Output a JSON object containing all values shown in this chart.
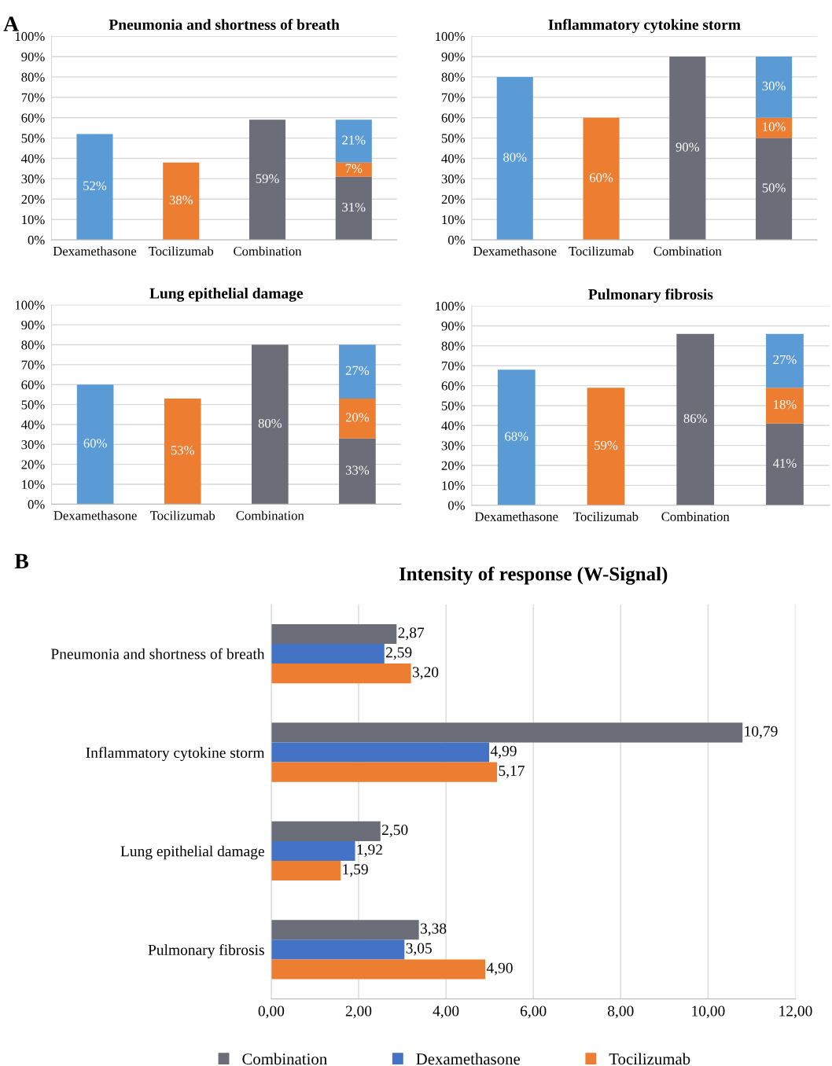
{
  "chart_data": [
    {
      "type": "bar",
      "title": "Pneumonia and shortness of breath",
      "annotations": [
        "A"
      ],
      "categories": [
        "Dexamethasone",
        "Tocilizumab",
        "Combination",
        null
      ],
      "stacked": true,
      "grid": "y",
      "legend": false,
      "ylim": [
        0,
        100
      ],
      "yticks": [
        {
          "value": 0,
          "label": "0%"
        },
        {
          "value": 10,
          "label": "10%"
        },
        {
          "value": 20,
          "label": "20%"
        },
        {
          "value": 30,
          "label": "30%"
        },
        {
          "value": 40,
          "label": "40%"
        },
        {
          "value": 50,
          "label": "50%"
        },
        {
          "value": 60,
          "label": "60%"
        },
        {
          "value": 70,
          "label": "70%"
        },
        {
          "value": 80,
          "label": "80%"
        },
        {
          "value": 90,
          "label": "90%"
        },
        {
          "value": 100,
          "label": "100%"
        }
      ],
      "series": [
        {
          "color": "#6b6e78",
          "values": [
            null,
            null,
            59,
            31
          ],
          "value_labels": [
            null,
            null,
            "59%",
            "31%"
          ]
        },
        {
          "color": "#ed7d31",
          "values": [
            null,
            38,
            null,
            7
          ],
          "value_labels": [
            null,
            "38%",
            null,
            "7%"
          ]
        },
        {
          "color": "#5b9bd5",
          "values": [
            52,
            null,
            null,
            21
          ],
          "value_labels": [
            "52%",
            null,
            null,
            "21%"
          ]
        }
      ]
    },
    {
      "type": "bar",
      "title": "Inflammatory cytokine storm",
      "categories": [
        "Dexamethasone",
        "Tocilizumab",
        "Combination",
        null
      ],
      "stacked": true,
      "grid": "y",
      "legend": false,
      "ylim": [
        0,
        100
      ],
      "yticks": [
        {
          "value": 0,
          "label": "0%"
        },
        {
          "value": 10,
          "label": "10%"
        },
        {
          "value": 20,
          "label": "20%"
        },
        {
          "value": 30,
          "label": "30%"
        },
        {
          "value": 40,
          "label": "40%"
        },
        {
          "value": 50,
          "label": "50%"
        },
        {
          "value": 60,
          "label": "60%"
        },
        {
          "value": 70,
          "label": "70%"
        },
        {
          "value": 80,
          "label": "80%"
        },
        {
          "value": 90,
          "label": "90%"
        },
        {
          "value": 100,
          "label": "100%"
        }
      ],
      "series": [
        {
          "color": "#6b6e78",
          "values": [
            null,
            null,
            90,
            50
          ],
          "value_labels": [
            null,
            null,
            "90%",
            "50%"
          ]
        },
        {
          "color": "#ed7d31",
          "values": [
            null,
            60,
            null,
            10
          ],
          "value_labels": [
            null,
            "60%",
            null,
            "10%"
          ]
        },
        {
          "color": "#5b9bd5",
          "values": [
            80,
            null,
            null,
            30
          ],
          "value_labels": [
            "80%",
            null,
            null,
            "30%"
          ]
        }
      ]
    },
    {
      "type": "bar",
      "title": "Lung epithelial damage",
      "categories": [
        "Dexamethasone",
        "Tocilizumab",
        "Combination",
        null
      ],
      "stacked": true,
      "grid": "y",
      "legend": false,
      "ylim": [
        0,
        100
      ],
      "yticks": [
        {
          "value": 0,
          "label": "0%"
        },
        {
          "value": 10,
          "label": "10%"
        },
        {
          "value": 20,
          "label": "20%"
        },
        {
          "value": 30,
          "label": "30%"
        },
        {
          "value": 40,
          "label": "40%"
        },
        {
          "value": 50,
          "label": "50%"
        },
        {
          "value": 60,
          "label": "60%"
        },
        {
          "value": 70,
          "label": "70%"
        },
        {
          "value": 80,
          "label": "80%"
        },
        {
          "value": 90,
          "label": "90%"
        },
        {
          "value": 100,
          "label": "100%"
        }
      ],
      "series": [
        {
          "color": "#6b6e78",
          "values": [
            null,
            null,
            80,
            33
          ],
          "value_labels": [
            null,
            null,
            "80%",
            "33%"
          ]
        },
        {
          "color": "#ed7d31",
          "values": [
            null,
            53,
            null,
            20
          ],
          "value_labels": [
            null,
            "53%",
            null,
            "20%"
          ]
        },
        {
          "color": "#5b9bd5",
          "values": [
            60,
            null,
            null,
            27
          ],
          "value_labels": [
            "60%",
            null,
            null,
            "27%"
          ]
        }
      ]
    },
    {
      "type": "bar",
      "title": "Pulmonary fibrosis",
      "categories": [
        "Dexamethasone",
        "Tocilizumab",
        "Combination",
        null
      ],
      "stacked": true,
      "grid": "y",
      "legend": false,
      "ylim": [
        0,
        100
      ],
      "yticks": [
        {
          "value": 0,
          "label": "0%"
        },
        {
          "value": 10,
          "label": "10%"
        },
        {
          "value": 20,
          "label": "20%"
        },
        {
          "value": 30,
          "label": "30%"
        },
        {
          "value": 40,
          "label": "40%"
        },
        {
          "value": 50,
          "label": "50%"
        },
        {
          "value": 60,
          "label": "60%"
        },
        {
          "value": 70,
          "label": "70%"
        },
        {
          "value": 80,
          "label": "80%"
        },
        {
          "value": 90,
          "label": "90%"
        },
        {
          "value": 100,
          "label": "100%"
        }
      ],
      "series": [
        {
          "color": "#6b6e78",
          "values": [
            null,
            null,
            86,
            41
          ],
          "value_labels": [
            null,
            null,
            "86%",
            "41%"
          ]
        },
        {
          "color": "#ed7d31",
          "values": [
            null,
            59,
            null,
            18
          ],
          "value_labels": [
            null,
            "59%",
            null,
            "18%"
          ]
        },
        {
          "color": "#5b9bd5",
          "values": [
            68,
            null,
            null,
            27
          ],
          "value_labels": [
            "68%",
            null,
            null,
            "27%"
          ]
        }
      ]
    },
    {
      "type": "bar",
      "title": "Intensity of response (W-Signal)",
      "annotations": [
        "B"
      ],
      "orientation": "horizontal",
      "categories": [
        "Pneumonia and shortness of breath",
        "Inflammatory cytokine storm",
        "Lung epithelial damage",
        "Pulmonary fibrosis"
      ],
      "grid": "x",
      "legend": "bottom",
      "xlim": [
        0,
        12
      ],
      "xticks": [
        {
          "value": 0,
          "label": "0,00"
        },
        {
          "value": 2,
          "label": "2,00"
        },
        {
          "value": 4,
          "label": "4,00"
        },
        {
          "value": 6,
          "label": "6,00"
        },
        {
          "value": 8,
          "label": "8,00"
        },
        {
          "value": 10,
          "label": "10,00"
        },
        {
          "value": 12,
          "label": "12,00"
        }
      ],
      "series": [
        {
          "name": "Combination",
          "color": "#6b6e78",
          "values": [
            2.87,
            10.79,
            2.5,
            3.38
          ],
          "value_labels": [
            "2,87",
            "10,79",
            "2,50",
            "3,38"
          ]
        },
        {
          "name": "Dexamethasone",
          "color": "#4472c4",
          "values": [
            2.59,
            4.99,
            1.92,
            3.05
          ],
          "value_labels": [
            "2,59",
            "4,99",
            "1,92",
            "3,05"
          ]
        },
        {
          "name": "Tocilizumab",
          "color": "#ed7d31",
          "values": [
            3.2,
            5.17,
            1.59,
            4.9
          ],
          "value_labels": [
            "3,20",
            "5,17",
            "1,59",
            "4,90"
          ]
        }
      ]
    }
  ]
}
